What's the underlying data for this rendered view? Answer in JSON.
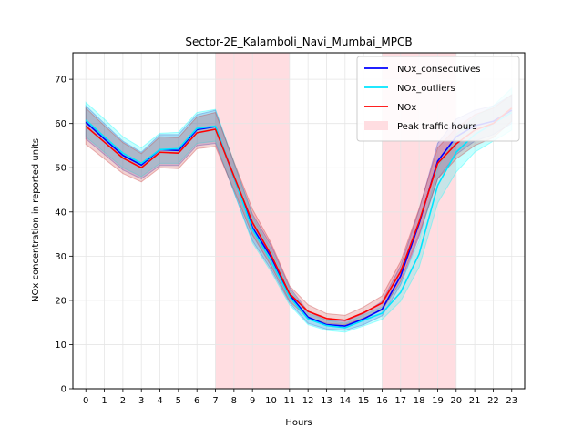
{
  "chart_data": {
    "type": "line",
    "title": "Sector-2E_Kalamboli_Navi_Mumbai_MPCB",
    "xlabel": "Hours",
    "ylabel": "NOx concentration in reported units",
    "xlim": [
      -0.7,
      23.7
    ],
    "ylim": [
      0,
      76
    ],
    "x": [
      0,
      1,
      2,
      3,
      4,
      5,
      6,
      7,
      8,
      9,
      10,
      11,
      12,
      13,
      14,
      15,
      16,
      17,
      18,
      19,
      20,
      21,
      22,
      23
    ],
    "x_ticks": [
      "0",
      "1",
      "2",
      "3",
      "4",
      "5",
      "6",
      "7",
      "8",
      "9",
      "10",
      "11",
      "12",
      "13",
      "14",
      "15",
      "16",
      "17",
      "18",
      "19",
      "20",
      "21",
      "22",
      "23"
    ],
    "y_ticks": [
      0,
      10,
      20,
      30,
      40,
      50,
      60,
      70
    ],
    "grid": true,
    "legend_position": "top-right",
    "peak_traffic_hours": [
      [
        7,
        11
      ],
      [
        16,
        20
      ]
    ],
    "series": [
      {
        "name": "NOx_consecutives",
        "color": "#0000ff",
        "values": [
          60.3,
          56.5,
          52.8,
          50.6,
          54.1,
          53.9,
          58.6,
          59.3,
          47.8,
          36.5,
          29.8,
          21.3,
          16.2,
          14.5,
          14.2,
          15.8,
          18.0,
          25.5,
          37.4,
          51.5,
          57.0,
          59.5,
          60.5,
          63.0
        ],
        "band_low": [
          56.5,
          53.0,
          49.5,
          47.5,
          50.5,
          50.5,
          55.0,
          55.5,
          44.5,
          33.5,
          27.0,
          19.5,
          14.8,
          13.5,
          13.2,
          14.5,
          16.5,
          23.5,
          34.5,
          47.5,
          53.0,
          56.0,
          57.5,
          60.0
        ],
        "band_high": [
          64.0,
          60.0,
          56.0,
          53.5,
          57.5,
          57.5,
          62.0,
          63.0,
          51.0,
          39.5,
          32.5,
          23.0,
          17.5,
          15.5,
          15.3,
          17.0,
          19.8,
          27.8,
          40.5,
          55.5,
          61.0,
          63.0,
          64.0,
          66.5
        ],
        "band_color": "#4040c8"
      },
      {
        "name": "NOx_outliers",
        "color": "#00e5ff",
        "values": [
          60.8,
          57.0,
          53.3,
          51.0,
          54.1,
          54.3,
          58.9,
          59.4,
          47.8,
          36.0,
          28.9,
          20.8,
          15.8,
          14.3,
          13.8,
          15.5,
          17.1,
          21.8,
          30.5,
          46.0,
          53.5,
          57.5,
          60.0,
          62.5
        ],
        "band_low": [
          57.0,
          53.5,
          50.0,
          48.0,
          51.0,
          51.0,
          55.5,
          56.0,
          44.5,
          33.0,
          26.5,
          19.0,
          14.5,
          13.2,
          12.8,
          14.2,
          15.7,
          19.8,
          27.5,
          42.0,
          49.0,
          53.5,
          56.0,
          58.5
        ],
        "band_high": [
          64.8,
          61.0,
          57.0,
          54.5,
          57.8,
          58.0,
          62.5,
          63.2,
          51.3,
          39.0,
          31.5,
          22.5,
          17.0,
          15.5,
          14.8,
          16.7,
          18.5,
          23.8,
          33.5,
          50.0,
          57.5,
          61.5,
          64.0,
          68.0
        ],
        "band_color": "#00ffff"
      },
      {
        "name": "NOx",
        "color": "#ff0000",
        "values": [
          59.4,
          55.8,
          52.2,
          50.0,
          53.5,
          53.3,
          57.9,
          58.7,
          48.1,
          37.6,
          30.3,
          21.5,
          17.5,
          15.9,
          15.5,
          17.2,
          19.4,
          26.5,
          37.8,
          51.0,
          55.4,
          58.5,
          60.0,
          63.5
        ],
        "band_low": [
          55.3,
          52.0,
          48.7,
          46.8,
          50.0,
          49.8,
          54.3,
          54.8,
          45.0,
          34.8,
          27.8,
          19.8,
          16.0,
          14.8,
          14.5,
          16.0,
          17.8,
          24.3,
          35.0,
          47.5,
          52.0,
          55.0,
          56.8,
          60.5
        ],
        "band_high": [
          63.5,
          59.5,
          55.7,
          53.2,
          57.0,
          56.8,
          61.5,
          62.5,
          51.3,
          40.6,
          33.0,
          23.3,
          19.0,
          17.0,
          16.6,
          18.5,
          21.0,
          28.8,
          40.8,
          54.5,
          59.0,
          62.0,
          63.5,
          66.5
        ],
        "band_color": "#c83232"
      }
    ],
    "legend": [
      {
        "label": "NOx_consecutives",
        "kind": "line",
        "color": "#0000ff"
      },
      {
        "label": "NOx_outliers",
        "kind": "line",
        "color": "#00e5ff"
      },
      {
        "label": "NOx",
        "kind": "line",
        "color": "#ff0000"
      },
      {
        "label": "Peak traffic hours",
        "kind": "patch",
        "color": "#ffdde1"
      }
    ]
  }
}
